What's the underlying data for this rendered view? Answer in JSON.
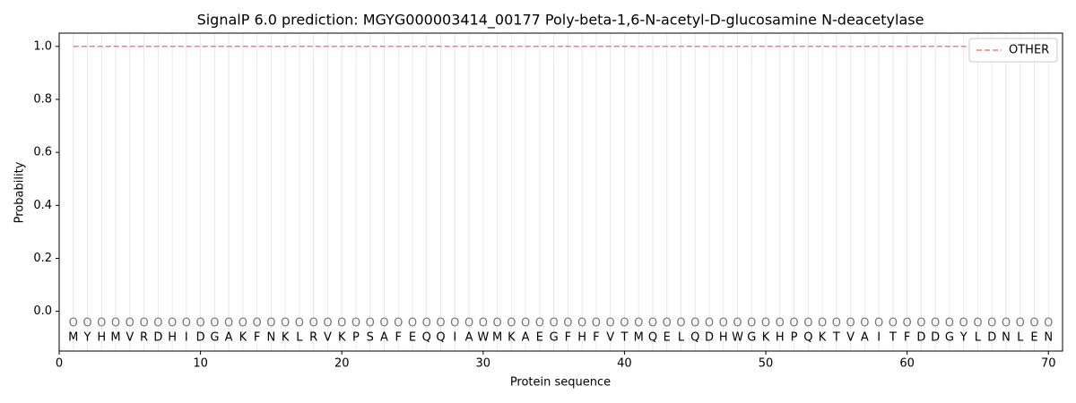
{
  "chart_data": {
    "type": "line",
    "title": "SignalP 6.0 prediction: MGYG000003414_00177 Poly-beta-1,6-N-acetyl-D-glucosamine N-deacetylase",
    "xlabel": "Protein sequence",
    "ylabel": "Probability",
    "x": [
      1,
      2,
      3,
      4,
      5,
      6,
      7,
      8,
      9,
      10,
      11,
      12,
      13,
      14,
      15,
      16,
      17,
      18,
      19,
      20,
      21,
      22,
      23,
      24,
      25,
      26,
      27,
      28,
      29,
      30,
      31,
      32,
      33,
      34,
      35,
      36,
      37,
      38,
      39,
      40,
      41,
      42,
      43,
      44,
      45,
      46,
      47,
      48,
      49,
      50,
      51,
      52,
      53,
      54,
      55,
      56,
      57,
      58,
      59,
      60,
      61,
      62,
      63,
      64,
      65,
      66,
      67,
      68,
      69,
      70
    ],
    "sequence": [
      "M",
      "Y",
      "H",
      "M",
      "V",
      "R",
      "D",
      "H",
      "I",
      "D",
      "G",
      "A",
      "K",
      "F",
      "N",
      "K",
      "L",
      "R",
      "V",
      "K",
      "P",
      "S",
      "A",
      "F",
      "E",
      "Q",
      "Q",
      "I",
      "A",
      "W",
      "M",
      "K",
      "A",
      "E",
      "G",
      "F",
      "H",
      "F",
      "V",
      "T",
      "M",
      "Q",
      "E",
      "L",
      "Q",
      "D",
      "H",
      "W",
      "G",
      "K",
      "H",
      "P",
      "Q",
      "K",
      "T",
      "V",
      "A",
      "I",
      "T",
      "F",
      "D",
      "D",
      "G",
      "Y",
      "L",
      "D",
      "N",
      "L",
      "E",
      "N"
    ],
    "predicted_labels": [
      "O",
      "O",
      "O",
      "O",
      "O",
      "O",
      "O",
      "O",
      "O",
      "O",
      "O",
      "O",
      "O",
      "O",
      "O",
      "O",
      "O",
      "O",
      "O",
      "O",
      "O",
      "O",
      "O",
      "O",
      "O",
      "O",
      "O",
      "O",
      "O",
      "O",
      "O",
      "O",
      "O",
      "O",
      "O",
      "O",
      "O",
      "O",
      "O",
      "O",
      "O",
      "O",
      "O",
      "O",
      "O",
      "O",
      "O",
      "O",
      "O",
      "O",
      "O",
      "O",
      "O",
      "O",
      "O",
      "O",
      "O",
      "O",
      "O",
      "O",
      "O",
      "O",
      "O",
      "O",
      "O",
      "O",
      "O",
      "O",
      "O",
      "O"
    ],
    "series": [
      {
        "name": "OTHER",
        "color": "#f08080",
        "dash": true,
        "values": [
          1,
          1,
          1,
          1,
          1,
          1,
          1,
          1,
          1,
          1,
          1,
          1,
          1,
          1,
          1,
          1,
          1,
          1,
          1,
          1,
          1,
          1,
          1,
          1,
          1,
          1,
          1,
          1,
          1,
          1,
          1,
          1,
          1,
          1,
          1,
          1,
          1,
          1,
          1,
          1,
          1,
          1,
          1,
          1,
          1,
          1,
          1,
          1,
          1,
          1,
          1,
          1,
          1,
          1,
          1,
          1,
          1,
          1,
          1,
          1,
          1,
          1,
          1,
          1,
          1,
          1,
          1,
          1,
          1,
          1
        ]
      }
    ],
    "xlim": [
      0,
      71
    ],
    "xticks": [
      0,
      10,
      20,
      30,
      40,
      50,
      60,
      70
    ],
    "ylim": [
      -0.15,
      1.05
    ],
    "yticks": [
      {
        "value": 0,
        "label": "0.0"
      },
      {
        "value": 0.2,
        "label": "0.2"
      },
      {
        "value": 0.4,
        "label": "0.4"
      },
      {
        "value": 0.6,
        "label": "0.6"
      },
      {
        "value": 0.8,
        "label": "0.8"
      },
      {
        "value": 1,
        "label": "1.0"
      }
    ],
    "legend": "upper right"
  }
}
